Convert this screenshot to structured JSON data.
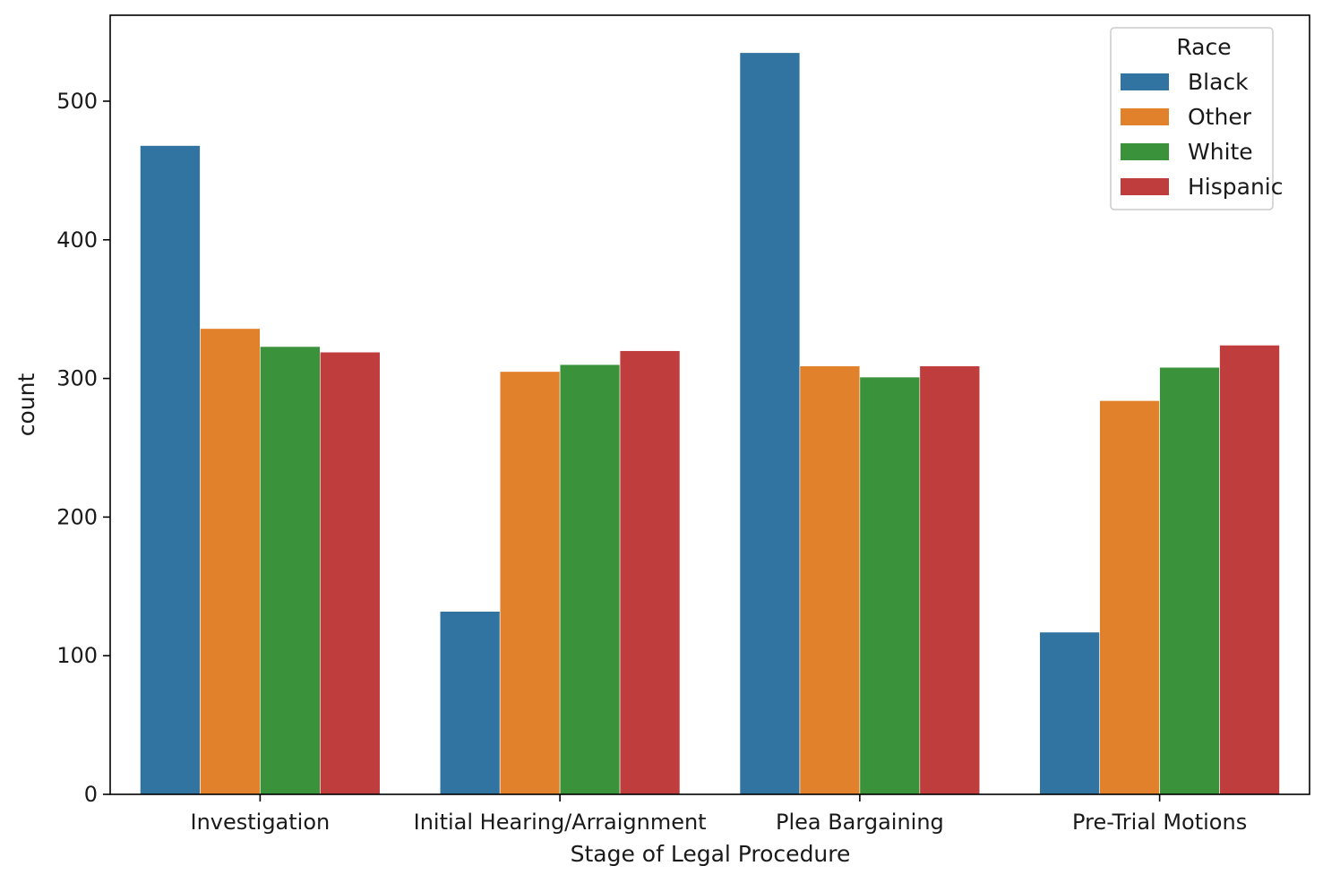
{
  "chart_data": {
    "type": "bar",
    "title": "",
    "xlabel": "Stage of Legal Procedure",
    "ylabel": "count",
    "categories": [
      "Investigation",
      "Initial Hearing/Arraignment",
      "Plea Bargaining",
      "Pre-Trial Motions"
    ],
    "series": [
      {
        "name": "Black",
        "color": "#3274a1",
        "values": [
          468,
          132,
          535,
          117
        ]
      },
      {
        "name": "Other",
        "color": "#e1812c",
        "values": [
          336,
          305,
          309,
          284
        ]
      },
      {
        "name": "White",
        "color": "#3a923a",
        "values": [
          323,
          310,
          301,
          308
        ]
      },
      {
        "name": "Hispanic",
        "color": "#c03d3e",
        "values": [
          319,
          320,
          309,
          324
        ]
      }
    ],
    "yticks": [
      0,
      100,
      200,
      300,
      400,
      500
    ],
    "ylim": [
      0,
      562
    ],
    "grid": false,
    "legend": {
      "title": "Race",
      "placement": "top-right"
    }
  }
}
